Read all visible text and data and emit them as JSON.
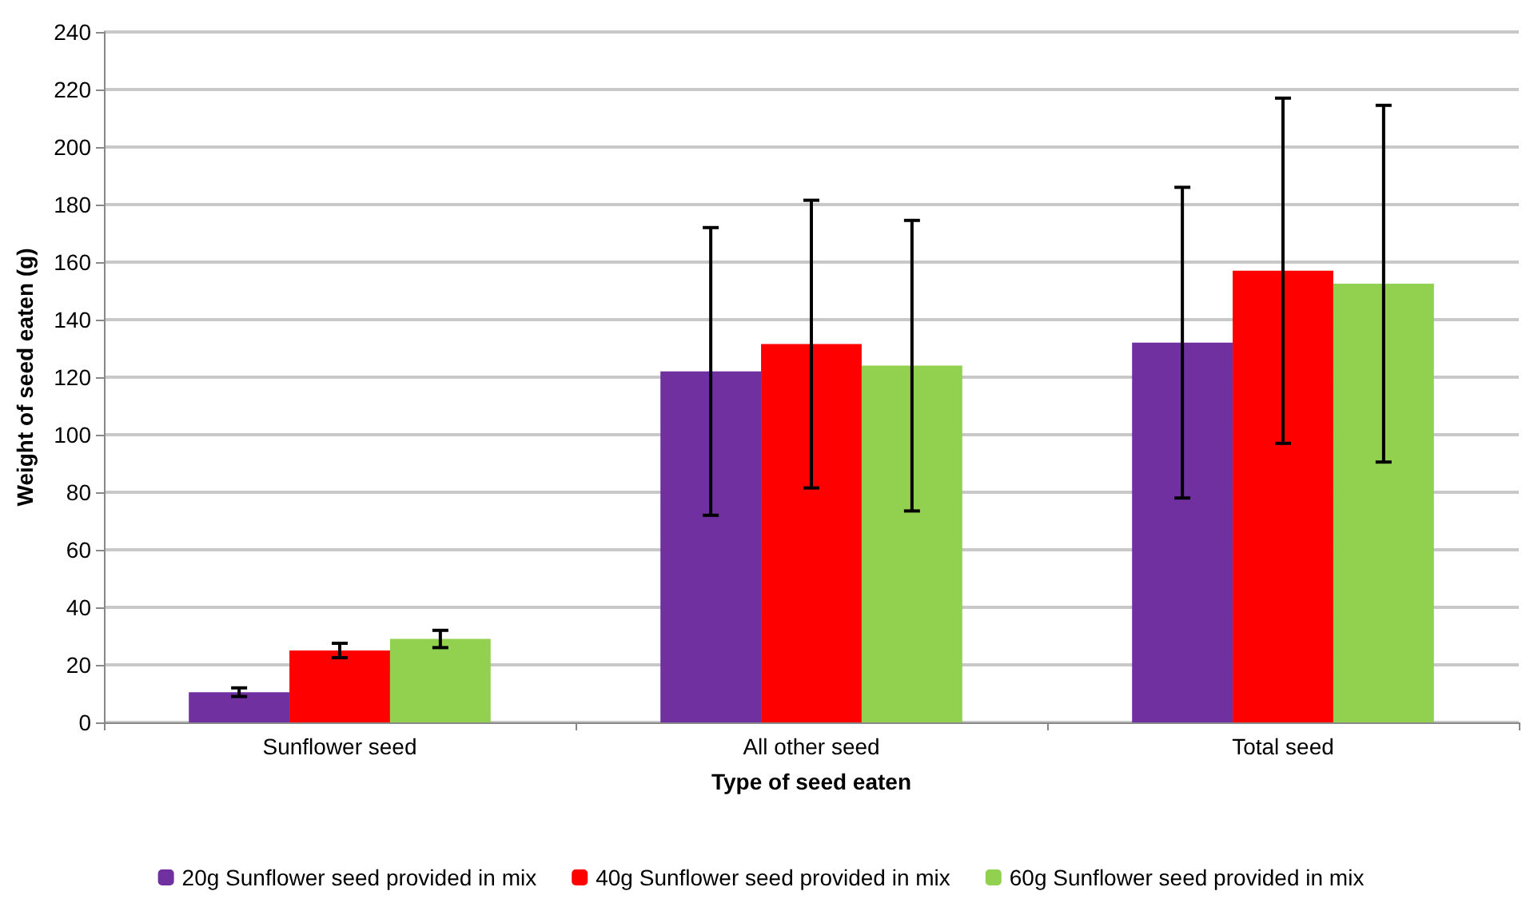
{
  "chart_data": {
    "type": "bar",
    "xlabel": "Type of seed eaten",
    "ylabel": "Weight of seed eaten (g)",
    "categories": [
      "Sunflower seed",
      "All other seed",
      "Total seed"
    ],
    "series": [
      {
        "name": "20g Sunflower seed provided in mix",
        "color": "#7030a0",
        "values": [
          10.5,
          122,
          132
        ],
        "errors": [
          1.5,
          50,
          54
        ]
      },
      {
        "name": "40g Sunflower seed provided in mix",
        "color": "#ff0000",
        "values": [
          25,
          131.5,
          157
        ],
        "errors": [
          2.5,
          50,
          60
        ]
      },
      {
        "name": "60g Sunflower seed provided in mix",
        "color": "#92d050",
        "values": [
          29,
          124,
          152.5
        ],
        "errors": [
          3,
          50.5,
          62
        ]
      }
    ],
    "ylim": [
      0,
      240
    ],
    "yticks": [
      0,
      20,
      40,
      60,
      80,
      100,
      120,
      140,
      160,
      180,
      200,
      220,
      240
    ],
    "grid": "y",
    "legend": "bottom"
  }
}
